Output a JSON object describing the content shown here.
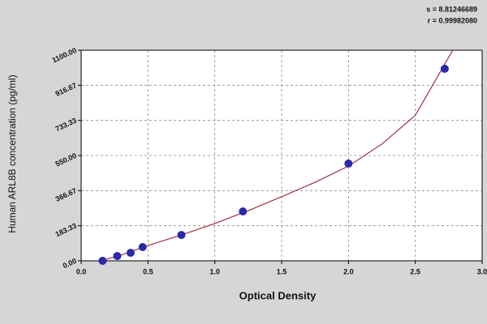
{
  "chart_data": {
    "type": "scatter",
    "stats": [
      "s = 8.81246689",
      "r = 0.99982080"
    ],
    "xlabel": "Optical Density",
    "ylabel": "Human ARL8B concentration (pg/ml)",
    "xlim": [
      0,
      3.0
    ],
    "ylim": [
      0,
      1100
    ],
    "xticks": [
      {
        "value": 0,
        "label": "0.0"
      },
      0.5,
      {
        "value": 1,
        "label": "1.0"
      },
      1.5,
      {
        "value": 2,
        "label": "2.0"
      },
      2.5,
      {
        "value": 3,
        "label": "3.0"
      }
    ],
    "yticks": [
      {
        "value": 0,
        "label": "0.00"
      },
      {
        "value": 183.33,
        "label": "183.33"
      },
      {
        "value": 366.67,
        "label": "366.67"
      },
      {
        "value": 550,
        "label": "550.00"
      },
      {
        "value": 733.33,
        "label": "733.33"
      },
      {
        "value": 916.67,
        "label": "916.67"
      },
      {
        "value": 1100,
        "label": "1100.00"
      }
    ],
    "grid": true,
    "series": [
      {
        "color": "#2a2aa8",
        "x": [
          0.16,
          0.27,
          0.37,
          0.46,
          0.75,
          1.21,
          2.0,
          2.72
        ],
        "values": [
          0,
          25,
          42,
          72,
          135,
          258,
          508,
          1003
        ]
      }
    ],
    "curve": {
      "color": "#a03040",
      "x": [
        0.15,
        0.3,
        0.5,
        0.75,
        1.0,
        1.25,
        1.5,
        1.75,
        2.0,
        2.25,
        2.5,
        2.7,
        2.78
      ],
      "values": [
        0,
        30,
        80,
        135,
        195,
        262,
        335,
        410,
        495,
        610,
        760,
        1003,
        1100
      ]
    }
  }
}
